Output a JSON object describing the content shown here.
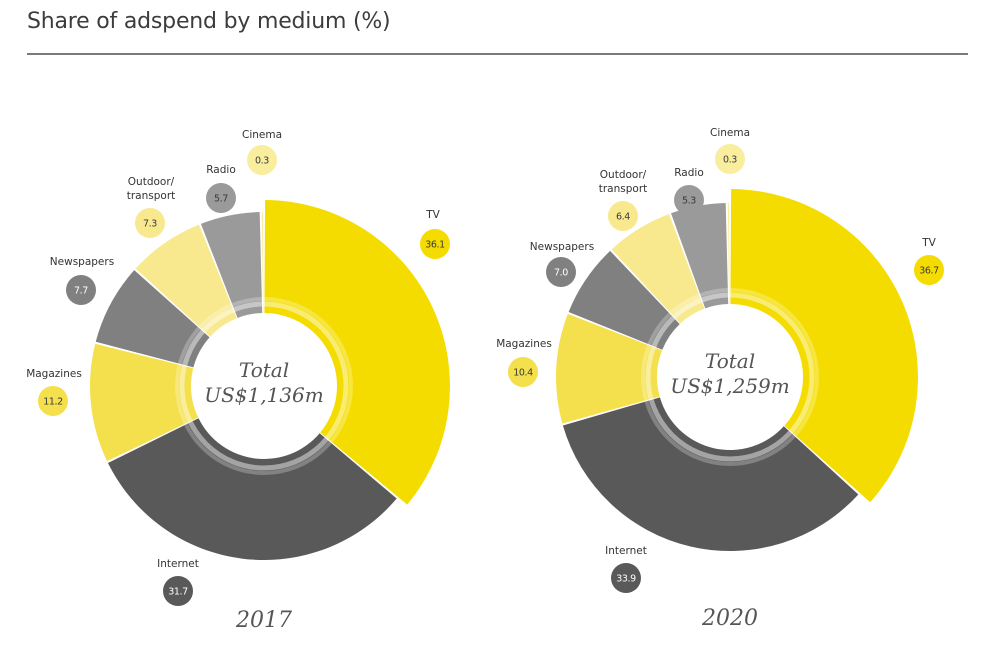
{
  "title": "Share of adspend by medium (%)",
  "colors": {
    "TV": "#f5dc00",
    "Internet": "#595959",
    "Magazines": "#f4e04c",
    "Newspapers": "#808080",
    "Outdoor/ transport": "#f8e98f",
    "Radio": "#9a9a9a",
    "Cinema": "#f8ee9e"
  },
  "chart_data": [
    {
      "type": "pie",
      "year": "2017",
      "total_line1": "Total",
      "total_line2": "US$1,136m",
      "categories": [
        "TV",
        "Internet",
        "Magazines",
        "Newspapers",
        "Outdoor/ transport",
        "Radio",
        "Cinema"
      ],
      "values": [
        36.1,
        31.7,
        11.2,
        7.7,
        7.3,
        5.7,
        0.3
      ],
      "value_labels": [
        "36.1",
        "31.7",
        "11.2",
        "7.7",
        "7.3",
        "5.7",
        "0.3"
      ]
    },
    {
      "type": "pie",
      "year": "2020",
      "total_line1": "Total",
      "total_line2": "US$1,259m",
      "categories": [
        "TV",
        "Internet",
        "Magazines",
        "Newspapers",
        "Outdoor/ transport",
        "Radio",
        "Cinema"
      ],
      "values": [
        36.7,
        33.9,
        10.4,
        7.0,
        6.4,
        5.3,
        0.3
      ],
      "value_labels": [
        "36.7",
        "33.9",
        "10.4",
        "7.0",
        "6.4",
        "5.3",
        "0.3"
      ]
    }
  ]
}
